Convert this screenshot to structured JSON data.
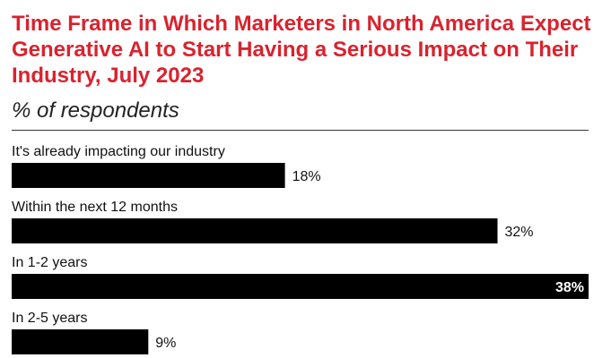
{
  "chart_data": {
    "type": "bar",
    "orientation": "horizontal",
    "title": "Time Frame in Which Marketers in North America Expect Generative AI to Start Having a Serious Impact on Their Industry, July 2023",
    "subtitle": "% of respondents",
    "categories": [
      "It's already impacting our industry",
      "Within the next 12 months",
      "In 1-2 years",
      "In 2-5 years"
    ],
    "values": [
      18,
      32,
      38,
      9
    ],
    "value_labels": [
      "18%",
      "32%",
      "38%",
      "9%"
    ],
    "xlim": [
      0,
      38
    ],
    "grid": false,
    "legend": "none",
    "colors": {
      "bar": "#000000",
      "title": "#d9232e",
      "label_outside": "#111111",
      "label_inside": "#ffffff"
    }
  }
}
